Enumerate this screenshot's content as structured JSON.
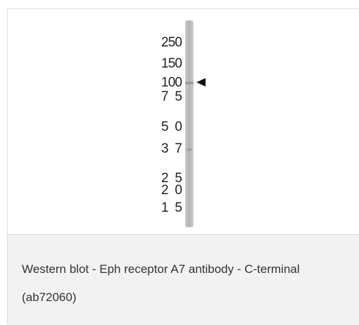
{
  "figure": {
    "markers": [
      "250",
      "150",
      "100",
      "75",
      "50",
      "37",
      "25",
      "20",
      "15"
    ]
  },
  "caption": "Western blot - Eph receptor A7 antibody - C-terminal (ab72060)"
}
